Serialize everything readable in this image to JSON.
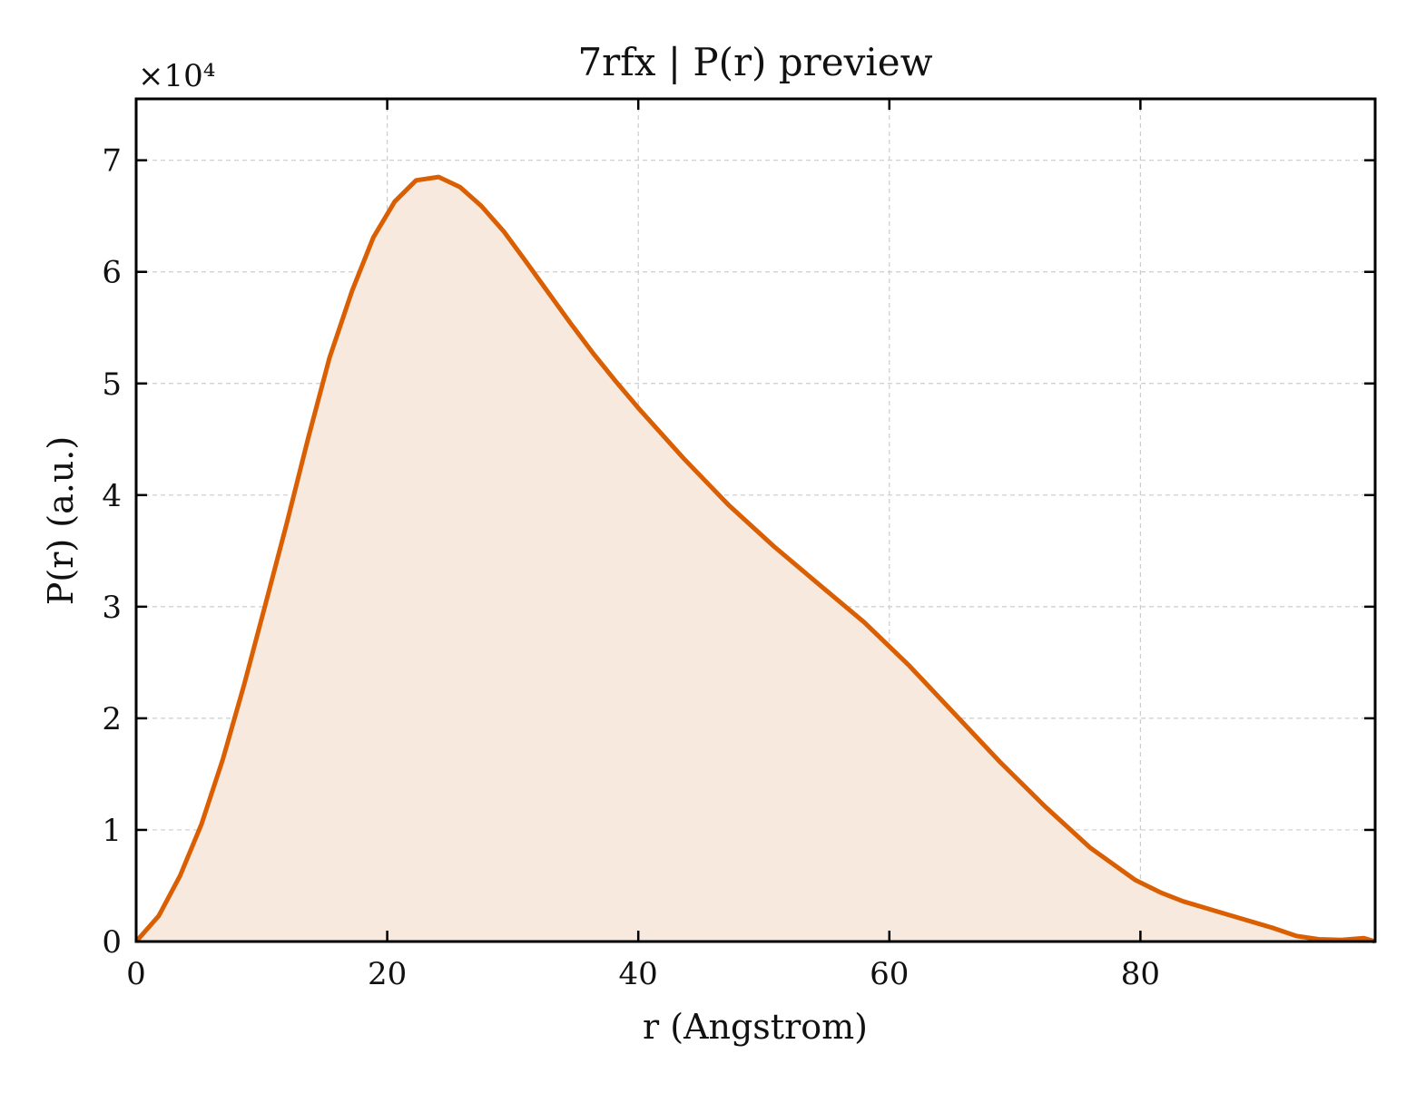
{
  "chart_data": {
    "type": "area",
    "title": "7rfx | P(r) preview",
    "xlabel": "r (Angstrom)",
    "ylabel": "P(r) (a.u.)",
    "y_multiplier_label": "×10⁴",
    "y_scale_factor": 10000,
    "xlim": [
      0,
      98.7
    ],
    "ylim": [
      0,
      75500
    ],
    "x_ticks": [
      0,
      20,
      40,
      60,
      80
    ],
    "y_ticks": [
      0,
      1,
      2,
      3,
      4,
      5,
      6,
      7
    ],
    "grid": true,
    "legend": "none",
    "colors": {
      "line": "#d95f02",
      "fill": "#f8e9de",
      "grid": "#cccccc",
      "axes": "#000000"
    },
    "series": [
      {
        "x": [
          0,
          1.8,
          3.5,
          5.2,
          6.9,
          8.6,
          10.3,
          12.0,
          13.7,
          15.4,
          17.2,
          18.9,
          20.6,
          22.3,
          24.1,
          25.8,
          27.5,
          29.3,
          31.0,
          32.8,
          34.6,
          36.4,
          38.2,
          40.0,
          43.6,
          47.2,
          50.8,
          54.4,
          58.0,
          61.6,
          65.2,
          68.8,
          72.4,
          76.0,
          79.6,
          81.6,
          83.4,
          87.0,
          90.6,
          92.4,
          94.2,
          96.0,
          97.8,
          98.7
        ],
        "y": [
          0,
          2300,
          5900,
          10500,
          16300,
          23000,
          30200,
          37500,
          45100,
          52300,
          58300,
          63100,
          66300,
          68200,
          68500,
          67600,
          65900,
          63600,
          61000,
          58200,
          55400,
          52700,
          50200,
          47800,
          43300,
          39100,
          35400,
          32000,
          28600,
          24700,
          20400,
          16100,
          12100,
          8400,
          5500,
          4400,
          3600,
          2400,
          1200,
          500,
          200,
          150,
          300,
          0
        ]
      }
    ]
  }
}
